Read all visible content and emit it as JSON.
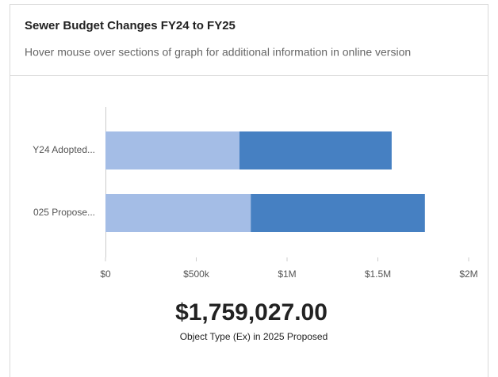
{
  "chart_data": {
    "type": "hbar_stacked",
    "title": "Sewer Budget Changes FY24 to FY25",
    "subtitle": "Hover mouse over sections of graph for additional information in online version",
    "categories": [
      "Y24 Adopted...",
      "025 Propose..."
    ],
    "series": [
      {
        "color": "#a4bde6",
        "values": [
          738000,
          800000
        ]
      },
      {
        "color": "#4680c2",
        "values": [
          838000,
          959027
        ]
      }
    ],
    "xlim": [
      0,
      2000000
    ],
    "xticks": [
      {
        "value": 0,
        "label": "$0"
      },
      {
        "value": 500000,
        "label": "$500k"
      },
      {
        "value": 1000000,
        "label": "$1M"
      },
      {
        "value": 1500000,
        "label": "$1.5M"
      },
      {
        "value": 2000000,
        "label": "$2M"
      }
    ],
    "highlight": {
      "value_label": "$1,759,027.00",
      "caption": "Object Type (Ex) in 2025 Proposed"
    }
  }
}
